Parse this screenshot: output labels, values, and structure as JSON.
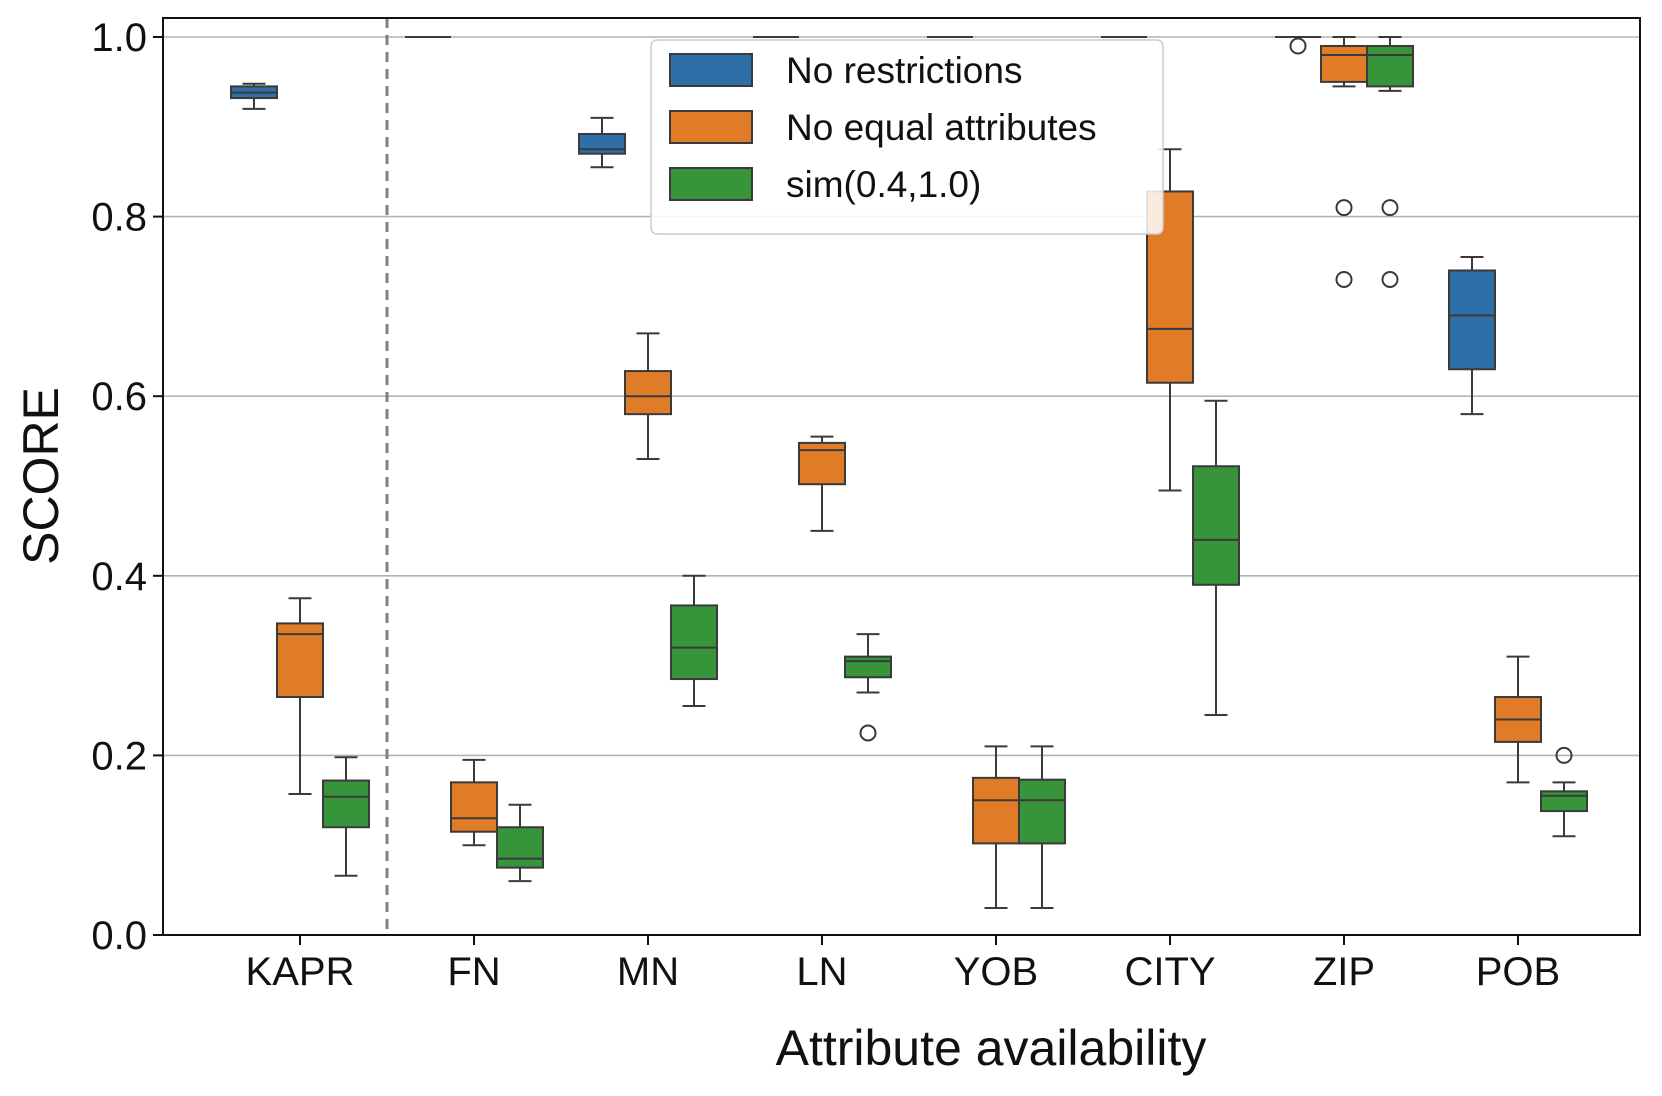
{
  "chart_data": {
    "type": "boxplot",
    "xlabel": "Attribute availability",
    "ylabel": "SCORE",
    "ylim": [
      0.0,
      1.0
    ],
    "yticks": [
      "0.0",
      "0.2",
      "0.4",
      "0.6",
      "0.8",
      "1.0"
    ],
    "grid": "horizontal",
    "legend_position": "top-center",
    "separator_after_category": "KAPR",
    "categories": [
      "KAPR",
      "FN",
      "MN",
      "LN",
      "YOB",
      "CITY",
      "ZIP",
      "POB"
    ],
    "series": [
      {
        "name": "No restrictions",
        "color": "#2e6fa7",
        "boxes": [
          {
            "min": 0.92,
            "q1": 0.932,
            "median": 0.938,
            "q3": 0.945,
            "max": 0.948,
            "outliers": []
          },
          {
            "min": 1.0,
            "q1": 1.0,
            "median": 1.0,
            "q3": 1.0,
            "max": 1.0,
            "outliers": []
          },
          {
            "min": 0.855,
            "q1": 0.87,
            "median": 0.875,
            "q3": 0.892,
            "max": 0.91,
            "outliers": []
          },
          {
            "min": 1.0,
            "q1": 1.0,
            "median": 1.0,
            "q3": 1.0,
            "max": 1.0,
            "outliers": []
          },
          {
            "min": 1.0,
            "q1": 1.0,
            "median": 1.0,
            "q3": 1.0,
            "max": 1.0,
            "outliers": []
          },
          {
            "min": 1.0,
            "q1": 1.0,
            "median": 1.0,
            "q3": 1.0,
            "max": 1.0,
            "outliers": []
          },
          {
            "min": 1.0,
            "q1": 1.0,
            "median": 1.0,
            "q3": 1.0,
            "max": 1.0,
            "outliers": [
              0.99
            ]
          },
          {
            "min": 0.58,
            "q1": 0.63,
            "median": 0.69,
            "q3": 0.74,
            "max": 0.755,
            "outliers": []
          }
        ]
      },
      {
        "name": "No equal attributes",
        "color": "#e07b27",
        "boxes": [
          {
            "min": 0.157,
            "q1": 0.265,
            "median": 0.335,
            "q3": 0.347,
            "max": 0.375,
            "outliers": []
          },
          {
            "min": 0.1,
            "q1": 0.115,
            "median": 0.13,
            "q3": 0.17,
            "max": 0.195,
            "outliers": []
          },
          {
            "min": 0.53,
            "q1": 0.58,
            "median": 0.6,
            "q3": 0.628,
            "max": 0.67,
            "outliers": []
          },
          {
            "min": 0.45,
            "q1": 0.502,
            "median": 0.54,
            "q3": 0.548,
            "max": 0.555,
            "outliers": []
          },
          {
            "min": 0.03,
            "q1": 0.102,
            "median": 0.15,
            "q3": 0.175,
            "max": 0.21,
            "outliers": []
          },
          {
            "min": 0.495,
            "q1": 0.615,
            "median": 0.675,
            "q3": 0.828,
            "max": 0.875,
            "outliers": []
          },
          {
            "min": 0.945,
            "q1": 0.95,
            "median": 0.98,
            "q3": 0.99,
            "max": 1.0,
            "outliers": [
              0.81,
              0.73
            ]
          },
          {
            "min": 0.17,
            "q1": 0.215,
            "median": 0.24,
            "q3": 0.265,
            "max": 0.31,
            "outliers": []
          }
        ]
      },
      {
        "name": "sim(0.4,1.0)",
        "color": "#37943a",
        "boxes": [
          {
            "min": 0.066,
            "q1": 0.12,
            "median": 0.154,
            "q3": 0.172,
            "max": 0.198,
            "outliers": []
          },
          {
            "min": 0.06,
            "q1": 0.075,
            "median": 0.085,
            "q3": 0.12,
            "max": 0.145,
            "outliers": []
          },
          {
            "min": 0.255,
            "q1": 0.285,
            "median": 0.32,
            "q3": 0.367,
            "max": 0.4,
            "outliers": []
          },
          {
            "min": 0.27,
            "q1": 0.287,
            "median": 0.305,
            "q3": 0.31,
            "max": 0.335,
            "outliers": [
              0.225
            ]
          },
          {
            "min": 0.03,
            "q1": 0.102,
            "median": 0.15,
            "q3": 0.173,
            "max": 0.21,
            "outliers": []
          },
          {
            "min": 0.245,
            "q1": 0.39,
            "median": 0.44,
            "q3": 0.522,
            "max": 0.595,
            "outliers": []
          },
          {
            "min": 0.94,
            "q1": 0.945,
            "median": 0.98,
            "q3": 0.99,
            "max": 1.0,
            "outliers": [
              0.81,
              0.73
            ]
          },
          {
            "min": 0.11,
            "q1": 0.138,
            "median": 0.155,
            "q3": 0.16,
            "max": 0.17,
            "outliers": [
              0.2
            ]
          }
        ]
      }
    ]
  }
}
